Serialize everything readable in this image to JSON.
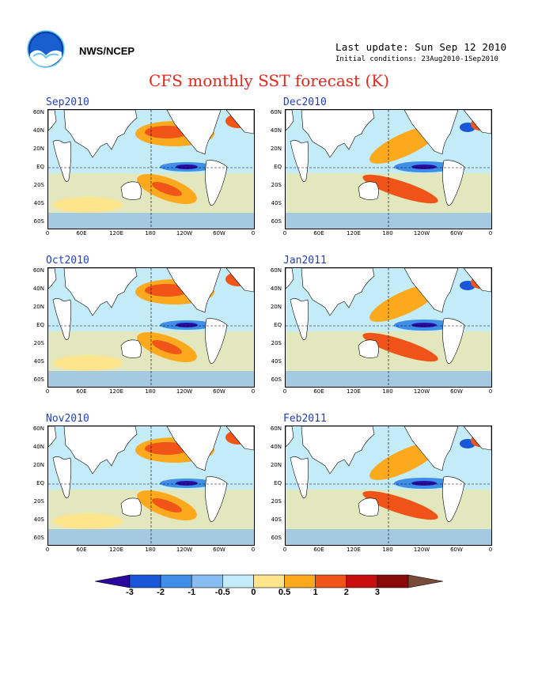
{
  "header": {
    "org": "NWS/NCEP",
    "last_update": "Last update: Sun Sep 12 2010",
    "initial_conditions": "Initial conditions: 23Aug2010-1Sep2010",
    "title": "CFS monthly SST forecast (K)"
  },
  "axes": {
    "lat_labels": [
      "60N",
      "40N",
      "20N",
      "EQ",
      "20S",
      "40S",
      "60S"
    ],
    "lon_labels": [
      "0",
      "60E",
      "120E",
      "180",
      "120W",
      "60W",
      "0"
    ]
  },
  "panels": [
    {
      "id": "sep2010",
      "label": "Sep2010"
    },
    {
      "id": "dec2010",
      "label": "Dec2010"
    },
    {
      "id": "oct2010",
      "label": "Oct2010"
    },
    {
      "id": "jan2011",
      "label": "Jan2011"
    },
    {
      "id": "nov2010",
      "label": "Nov2010"
    },
    {
      "id": "feb2011",
      "label": "Feb2011"
    }
  ],
  "colorbar": {
    "labels": [
      "-3",
      "-2",
      "-1",
      "-0.5",
      "0",
      "0.5",
      "1",
      "2",
      "3"
    ],
    "colors": [
      "#2a0a9e",
      "#1a56d8",
      "#3f8fe8",
      "#87bdf1",
      "#c3ecf8",
      "#fde48d",
      "#fca91e",
      "#f05418",
      "#c80e0e",
      "#8a0a0a",
      "#7a4a3a"
    ]
  }
}
